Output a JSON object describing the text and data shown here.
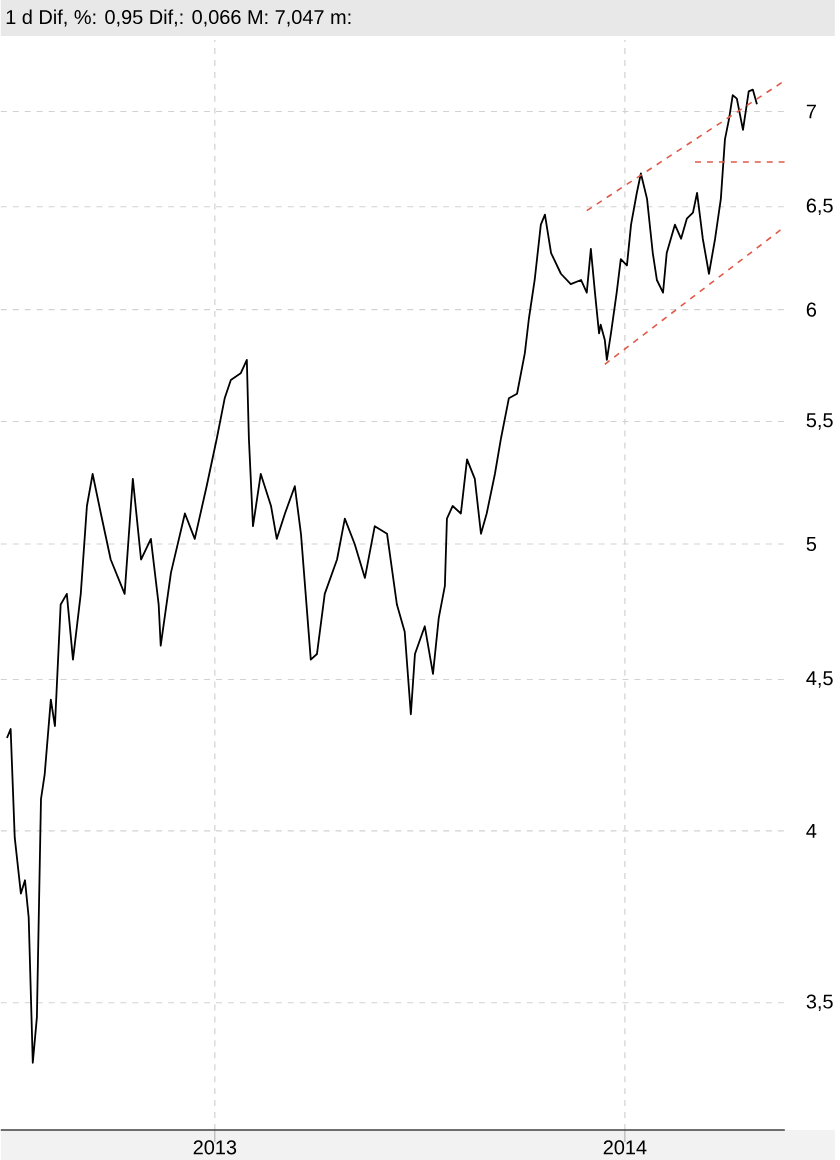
{
  "chart_data": {
    "type": "line",
    "title": "1 d Dif, %: 0,95 Dif,: 0,066 M: 7,047 m:",
    "log": "y",
    "grid": true,
    "xlim": [
      2012.478,
      2014.39
    ],
    "xticks": [
      2013,
      2014
    ],
    "ylim": [
      3.17,
      7.4
    ],
    "yticks": [
      7,
      {
        "value": 6.5,
        "label": "6,5"
      },
      6,
      {
        "value": 5.5,
        "label": "5,5"
      },
      5,
      {
        "value": 4.5,
        "label": "4,5"
      },
      4,
      {
        "value": 3.5,
        "label": "3,5"
      }
    ],
    "series": [
      {
        "color": "#000000",
        "x": [
          2012.493,
          2012.502,
          2012.512,
          2012.527,
          2012.537,
          2012.546,
          2012.556,
          2012.566,
          2012.576,
          2012.585,
          2012.6,
          2012.61,
          2012.624,
          2012.639,
          2012.654,
          2012.673,
          2012.688,
          2012.702,
          2012.722,
          2012.746,
          2012.78,
          2012.8,
          2012.82,
          2012.844,
          2012.863,
          2012.868,
          2012.893,
          2012.927,
          2012.951,
          2012.98,
          2013.005,
          2013.024,
          2013.039,
          2013.063,
          2013.078,
          2013.083,
          2013.093,
          2013.112,
          2013.137,
          2013.151,
          2013.171,
          2013.195,
          2013.21,
          2013.234,
          2013.249,
          2013.268,
          2013.298,
          2013.317,
          2013.341,
          2013.366,
          2013.39,
          2013.42,
          2013.444,
          2013.463,
          2013.478,
          2013.488,
          2013.512,
          2013.532,
          2013.546,
          2013.561,
          2013.566,
          2013.58,
          2013.6,
          2013.615,
          2013.634,
          2013.649,
          2013.663,
          2013.683,
          2013.698,
          2013.717,
          2013.737,
          2013.756,
          2013.766,
          2013.78,
          2013.795,
          2013.805,
          2013.82,
          2013.844,
          2013.868,
          2013.893,
          2013.907,
          2013.917,
          2013.927,
          2013.937,
          2013.941,
          2013.951,
          2013.956,
          2013.966,
          2013.98,
          2013.99,
          2014.005,
          2014.015,
          2014.029,
          2014.039,
          2014.054,
          2014.068,
          2014.078,
          2014.093,
          2014.102,
          2014.122,
          2014.137,
          2014.151,
          2014.166,
          2014.176,
          2014.19,
          2014.205,
          2014.22,
          2014.234,
          2014.244,
          2014.254,
          2014.263,
          2014.273,
          2014.288,
          2014.302,
          2014.312,
          2014.322
        ],
        "values": [
          4.3,
          4.33,
          3.98,
          3.81,
          3.85,
          3.74,
          3.34,
          3.46,
          4.1,
          4.18,
          4.43,
          4.34,
          4.77,
          4.81,
          4.57,
          4.81,
          5.15,
          5.28,
          5.12,
          4.94,
          4.81,
          5.26,
          4.94,
          5.02,
          4.77,
          4.62,
          4.89,
          5.12,
          5.02,
          5.23,
          5.43,
          5.6,
          5.68,
          5.71,
          5.77,
          5.43,
          5.07,
          5.28,
          5.15,
          5.02,
          5.12,
          5.23,
          5.04,
          4.57,
          4.59,
          4.81,
          4.94,
          5.1,
          5.0,
          4.87,
          5.07,
          5.04,
          4.77,
          4.67,
          4.38,
          4.59,
          4.69,
          4.52,
          4.72,
          4.84,
          5.1,
          5.15,
          5.12,
          5.34,
          5.26,
          5.04,
          5.12,
          5.28,
          5.43,
          5.6,
          5.62,
          5.8,
          5.96,
          6.14,
          6.41,
          6.46,
          6.27,
          6.17,
          6.12,
          6.14,
          6.08,
          6.29,
          6.08,
          5.89,
          5.93,
          5.86,
          5.77,
          5.89,
          6.08,
          6.24,
          6.21,
          6.41,
          6.57,
          6.67,
          6.54,
          6.27,
          6.14,
          6.08,
          6.27,
          6.41,
          6.34,
          6.44,
          6.47,
          6.57,
          6.34,
          6.17,
          6.34,
          6.54,
          6.85,
          6.96,
          7.09,
          7.07,
          6.9,
          7.11,
          7.12,
          7.04
        ]
      },
      {
        "color": "#e05a4a",
        "line_style": "dashed",
        "x": [
          2013.907,
          2014.39
        ],
        "values": [
          6.48,
          7.17
        ]
      },
      {
        "color": "#e05a4a",
        "line_style": "dashed",
        "x": [
          2013.951,
          2014.39
        ],
        "values": [
          5.75,
          6.4
        ]
      },
      {
        "color": "#e05a4a",
        "line_style": "dashed",
        "x": [
          2014.171,
          2014.39
        ],
        "values": [
          6.73,
          6.73
        ]
      }
    ]
  }
}
